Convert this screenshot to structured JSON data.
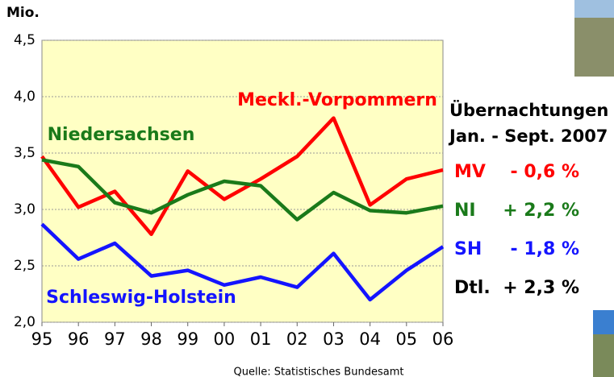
{
  "chart_data": {
    "type": "line",
    "unit_label": "Mio.",
    "categories": [
      "95",
      "96",
      "97",
      "98",
      "99",
      "00",
      "01",
      "02",
      "03",
      "04",
      "05",
      "06"
    ],
    "ylim": [
      2.0,
      4.5
    ],
    "yticks": [
      {
        "value": 2.0,
        "label": "2,0"
      },
      {
        "value": 2.5,
        "label": "2,5"
      },
      {
        "value": 3.0,
        "label": "3,0"
      },
      {
        "value": 3.5,
        "label": "3,5"
      },
      {
        "value": 4.0,
        "label": "4,0"
      },
      {
        "value": 4.5,
        "label": "4,5"
      }
    ],
    "grid": true,
    "series": [
      {
        "name": "Meckl.-Vorpommern",
        "color": "#ff0000",
        "values": [
          3.47,
          3.02,
          3.16,
          2.78,
          3.34,
          3.09,
          3.27,
          3.47,
          3.81,
          3.04,
          3.27,
          3.35
        ]
      },
      {
        "name": "Niedersachsen",
        "color": "#1a7a1a",
        "values": [
          3.44,
          3.38,
          3.06,
          2.97,
          3.13,
          3.25,
          3.21,
          2.91,
          3.15,
          2.99,
          2.97,
          3.03
        ]
      },
      {
        "name": "Schleswig-Holstein",
        "color": "#1414ff",
        "values": [
          2.87,
          2.56,
          2.7,
          2.41,
          2.46,
          2.33,
          2.4,
          2.31,
          2.61,
          2.2,
          2.46,
          2.67
        ]
      }
    ],
    "source": "Quelle: Statistisches Bundesamt"
  },
  "summary": {
    "title": [
      "Übernachtungen",
      "Jan. - Sept. 2007"
    ],
    "rows": [
      {
        "label": "MV",
        "value": "- 0,6 %",
        "color": "#ff0000"
      },
      {
        "label": "NI",
        "value": "+ 2,2 %",
        "color": "#1a7a1a"
      },
      {
        "label": "SH",
        "value": "- 1,8 %",
        "color": "#1414ff"
      },
      {
        "label": "Dtl.",
        "value": "+ 2,3 %",
        "color": "#000000"
      }
    ]
  }
}
